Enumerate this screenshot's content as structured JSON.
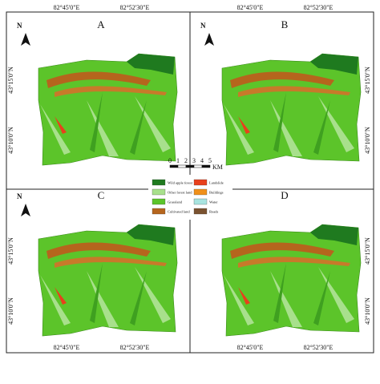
{
  "panels": [
    "A",
    "B",
    "C",
    "D"
  ],
  "north": "N",
  "top_coords": [
    "82°45'0\"E",
    "82°52'30\"E"
  ],
  "bottom_coords": [
    "82°45'0\"E",
    "82°52'30\"E"
  ],
  "lat_coords": [
    "43°15'0\"N",
    "43°10'0\"N"
  ],
  "scale": {
    "ticks": [
      "0",
      "1",
      "2",
      "3",
      "4",
      "5"
    ],
    "unit": "KM"
  },
  "legend": [
    {
      "label": "Wild apple forest",
      "color": "#1f7a1f"
    },
    {
      "label": "Landslide",
      "color": "#e8401c"
    },
    {
      "label": "Other forest land",
      "color": "#a8e08c"
    },
    {
      "label": "Buildings",
      "color": "#f0901a"
    },
    {
      "label": "Grassland",
      "color": "#5cc42a"
    },
    {
      "label": "Water",
      "color": "#a8e4e0"
    },
    {
      "label": "Cultivated land",
      "color": "#b5651d"
    },
    {
      "label": "Roads",
      "color": "#7a5230"
    }
  ]
}
